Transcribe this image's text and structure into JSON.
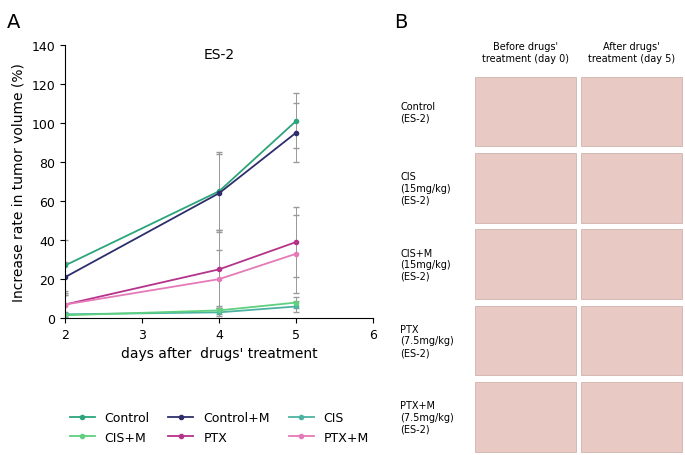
{
  "panel_labels": [
    "A",
    "B"
  ],
  "chart_data": {
    "type": "line",
    "title": "ES-2",
    "x_label": "days after  drugs' treatment",
    "y_label": "Increase rate in tumor volume (%)",
    "x": [
      2,
      4,
      5
    ],
    "xlim": [
      2,
      6
    ],
    "xticks": [
      2,
      3,
      4,
      5,
      6
    ],
    "ylim": [
      0,
      140
    ],
    "yticks": [
      0,
      20,
      40,
      60,
      80,
      100,
      120,
      140
    ],
    "legend": "lower center",
    "marker": "o",
    "series": [
      {
        "name": "Control",
        "color": "#2ca57a",
        "values": [
          27,
          65,
          101
        ],
        "errors": [
          13,
          20,
          14
        ]
      },
      {
        "name": "Control+M",
        "color": "#2e2e6e",
        "values": [
          21,
          64,
          95
        ],
        "errors": [
          8,
          20,
          15
        ]
      },
      {
        "name": "CIS",
        "color": "#4cb3a3",
        "values": [
          2,
          3,
          6
        ],
        "errors": [
          1,
          2,
          3
        ]
      },
      {
        "name": "CIS+M",
        "color": "#5fd07f",
        "values": [
          1.5,
          4,
          8
        ],
        "errors": [
          1,
          2,
          3
        ]
      },
      {
        "name": "PTX",
        "color": "#b5338a",
        "values": [
          7,
          25,
          39
        ],
        "errors": [
          5,
          20,
          18
        ]
      },
      {
        "name": "PTX+M",
        "color": "#e67ab8",
        "values": [
          7,
          20,
          33
        ],
        "errors": [
          5,
          15,
          20
        ]
      }
    ]
  },
  "photo_panel": {
    "columns": [
      "Before drugs'\ntreatment (day 0)",
      "After drugs'\ntreatment (day 5)"
    ],
    "rows": [
      "Control\n(ES-2)",
      "CIS\n(15mg/kg)\n(ES-2)",
      "CIS+M\n(15mg/kg)\n(ES-2)",
      "PTX\n(7.5mg/kg)\n(ES-2)",
      "PTX+M\n(7.5mg/kg)\n(ES-2)"
    ]
  }
}
